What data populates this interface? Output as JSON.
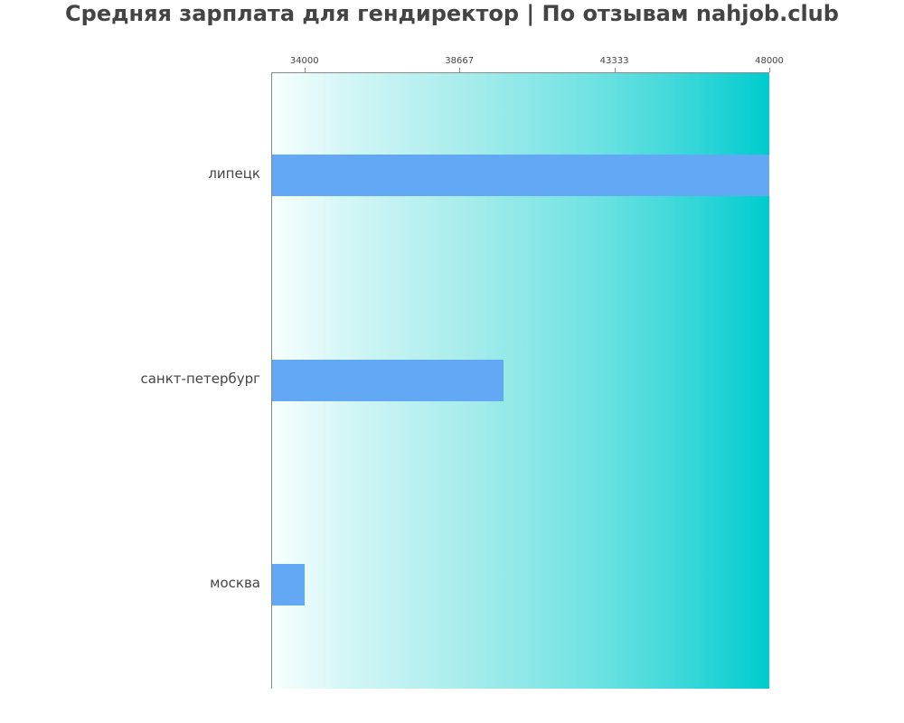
{
  "title": "Средняя зарплата для гендиректор | По отзывам nahjob.club",
  "colors": {
    "bar": "#63a8f4",
    "gradient_start": "#f8ffff",
    "gradient_end": "#00cccf",
    "text": "#444444"
  },
  "axis": {
    "ticks": [
      {
        "label": "34000",
        "value": 34000
      },
      {
        "label": "38667",
        "value": 38667
      },
      {
        "label": "43333",
        "value": 43333
      },
      {
        "label": "48000",
        "value": 48000
      }
    ]
  },
  "chart_data": {
    "type": "bar",
    "orientation": "horizontal",
    "title": "Средняя зарплата для гендиректор | По отзывам nahjob.club",
    "categories": [
      "липецк",
      "санкт-петербург",
      "москва"
    ],
    "values": [
      48000,
      40000,
      34000
    ],
    "xlabel": "",
    "ylabel": "",
    "xlim": [
      33000,
      48000
    ],
    "x_ticks": [
      34000,
      38667,
      43333,
      48000
    ],
    "x_axis_position": "top",
    "grid": false,
    "legend": null
  }
}
